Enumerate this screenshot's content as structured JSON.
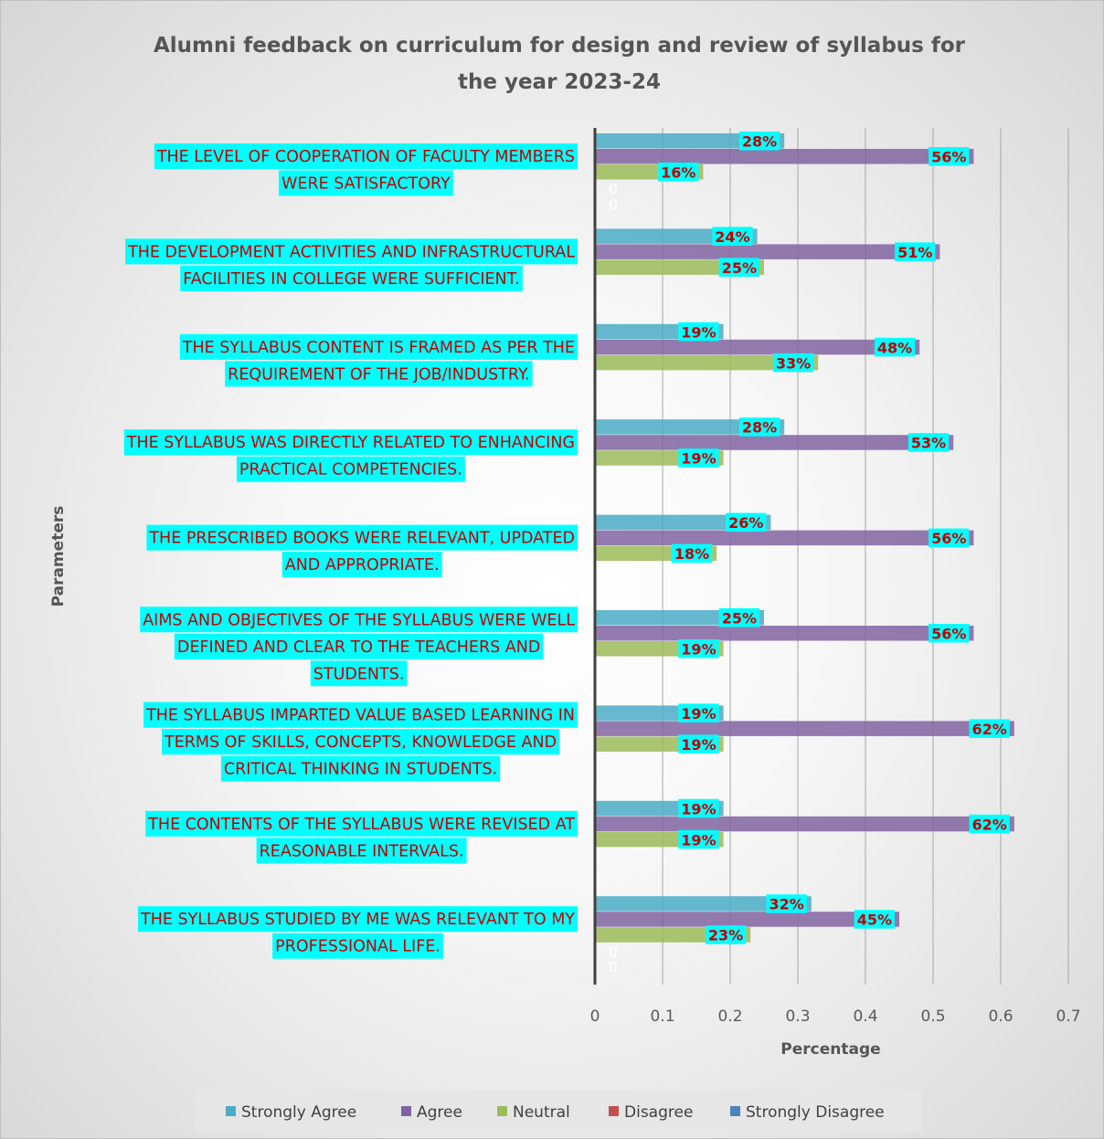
{
  "chart_data": {
    "type": "bar",
    "orientation": "horizontal",
    "title_line1": "Alumni feedback on curriculum for design and review of syllabus for",
    "title_line2": "the year 2023-24",
    "xlabel": "Percentage",
    "ylabel": "Parameters",
    "xlim": [
      0,
      0.7
    ],
    "xticks": [
      "0",
      "0.1",
      "0.2",
      "0.3",
      "0.4",
      "0.5",
      "0.6",
      "0.7"
    ],
    "grid": "vertical",
    "legend_position": "bottom",
    "categories": [
      [
        "THE LEVEL OF COOPERATION OF FACULTY MEMBERS",
        "WERE SATISFACTORY"
      ],
      [
        "THE DEVELOPMENT ACTIVITIES AND INFRASTRUCTURAL",
        "FACILITIES IN COLLEGE WERE SUFFICIENT."
      ],
      [
        "THE SYLLABUS CONTENT IS FRAMED AS PER THE",
        "REQUIREMENT OF THE JOB/INDUSTRY."
      ],
      [
        "THE SYLLABUS WAS DIRECTLY RELATED TO ENHANCING",
        "PRACTICAL COMPETENCIES."
      ],
      [
        "THE PRESCRIBED BOOKS WERE RELEVANT, UPDATED",
        "AND APPROPRIATE."
      ],
      [
        "AIMS AND OBJECTIVES OF THE SYLLABUS WERE WELL",
        "DEFINED AND CLEAR TO THE TEACHERS AND",
        "STUDENTS."
      ],
      [
        "THE SYLLABUS IMPARTED VALUE BASED LEARNING IN",
        "TERMS OF SKILLS, CONCEPTS, KNOWLEDGE AND",
        "CRITICAL THINKING IN STUDENTS."
      ],
      [
        "THE CONTENTS OF THE SYLLABUS WERE REVISED AT",
        "REASONABLE INTERVALS."
      ],
      [
        "THE SYLLABUS STUDIED BY ME WAS RELEVANT TO MY",
        "PROFESSIONAL LIFE."
      ]
    ],
    "series": [
      {
        "name": "Strongly Agree",
        "color": "#4bacc6",
        "values": [
          0.28,
          0.24,
          0.19,
          0.28,
          0.26,
          0.25,
          0.19,
          0.19,
          0.32
        ],
        "labels": [
          "28%",
          "24%",
          "19%",
          "28%",
          "26%",
          "25%",
          "19%",
          "19%",
          "32%"
        ]
      },
      {
        "name": "Agree",
        "color": "#8064a2",
        "values": [
          0.56,
          0.51,
          0.48,
          0.53,
          0.56,
          0.56,
          0.62,
          0.62,
          0.45
        ],
        "labels": [
          "56%",
          "51%",
          "48%",
          "53%",
          "56%",
          "56%",
          "62%",
          "62%",
          "45%"
        ]
      },
      {
        "name": "Neutral",
        "color": "#9bbb59",
        "values": [
          0.16,
          0.25,
          0.33,
          0.19,
          0.18,
          0.19,
          0.19,
          0.19,
          0.23
        ],
        "labels": [
          "16%",
          "25%",
          "33%",
          "19%",
          "18%",
          "19%",
          "19%",
          "19%",
          "23%"
        ]
      },
      {
        "name": "Disagree",
        "color": "#c0504d",
        "values": [
          0,
          null,
          null,
          null,
          null,
          null,
          null,
          null,
          0
        ],
        "labels": [
          "0",
          null,
          null,
          null,
          null,
          null,
          null,
          null,
          "0"
        ]
      },
      {
        "name": "Strongly Disagree",
        "color": "#4f81bd",
        "values": [
          0,
          null,
          null,
          null,
          null,
          null,
          null,
          null,
          0
        ],
        "labels": [
          "0",
          null,
          null,
          null,
          null,
          null,
          null,
          null,
          "0"
        ]
      }
    ],
    "colors": {
      "category_label_bg": "#00ffff",
      "data_label_bg": "#00ffff",
      "label_text": "#c00000",
      "axis_line": "#404040",
      "gridline": "#a6a6a6"
    }
  }
}
